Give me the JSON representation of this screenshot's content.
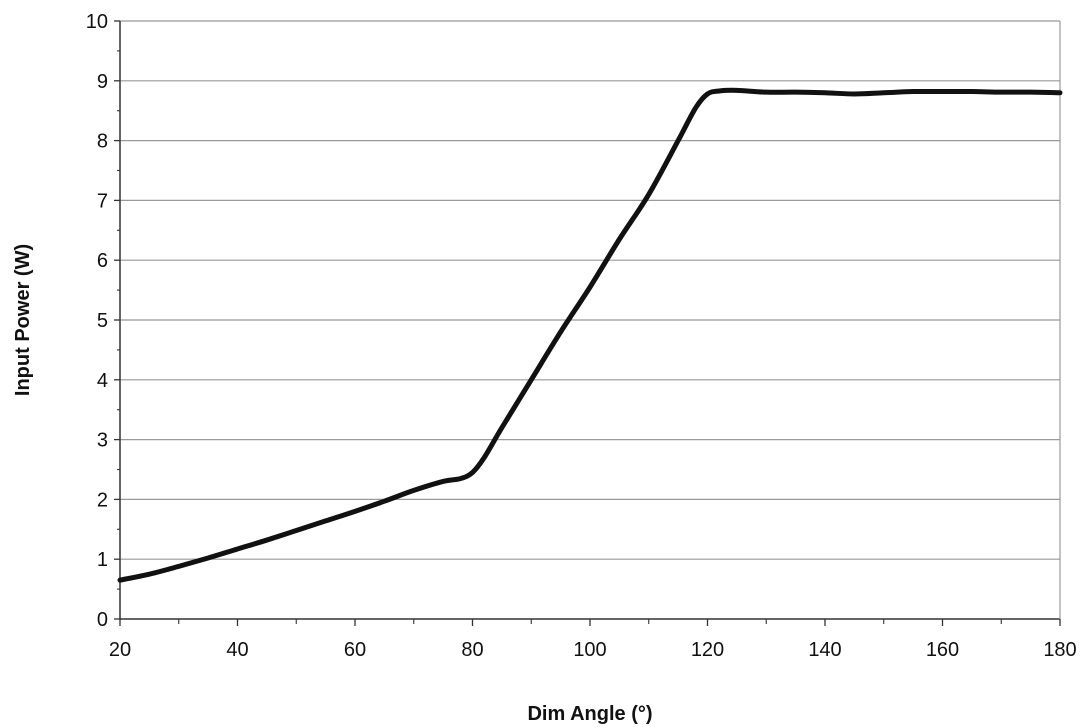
{
  "chart_data": {
    "type": "line",
    "title": "",
    "xlabel": "Dim Angle (°)",
    "ylabel": "Input Power (W)",
    "xlim": [
      20,
      180
    ],
    "ylim": [
      0,
      10
    ],
    "x_ticks": [
      20,
      40,
      60,
      80,
      100,
      120,
      140,
      160,
      180
    ],
    "y_ticks": [
      0,
      1,
      2,
      3,
      4,
      5,
      6,
      7,
      8,
      9,
      10
    ],
    "grid": "horizontal",
    "legend": "none",
    "line_color": "#111111",
    "grid_color": "#999999",
    "series": [
      {
        "x": [
          20,
          25,
          30,
          35,
          40,
          45,
          50,
          55,
          60,
          65,
          70,
          75,
          78,
          80,
          82,
          85,
          90,
          95,
          100,
          105,
          110,
          115,
          118,
          120,
          122,
          125,
          130,
          135,
          140,
          145,
          150,
          155,
          160,
          165,
          170,
          175,
          180
        ],
        "y": [
          0.65,
          0.75,
          0.88,
          1.02,
          1.17,
          1.32,
          1.48,
          1.64,
          1.8,
          1.97,
          2.15,
          2.3,
          2.35,
          2.45,
          2.7,
          3.2,
          4.0,
          4.8,
          5.55,
          6.35,
          7.1,
          8.0,
          8.55,
          8.78,
          8.83,
          8.84,
          8.81,
          8.81,
          8.8,
          8.78,
          8.8,
          8.82,
          8.82,
          8.82,
          8.81,
          8.81,
          8.8
        ]
      }
    ]
  }
}
